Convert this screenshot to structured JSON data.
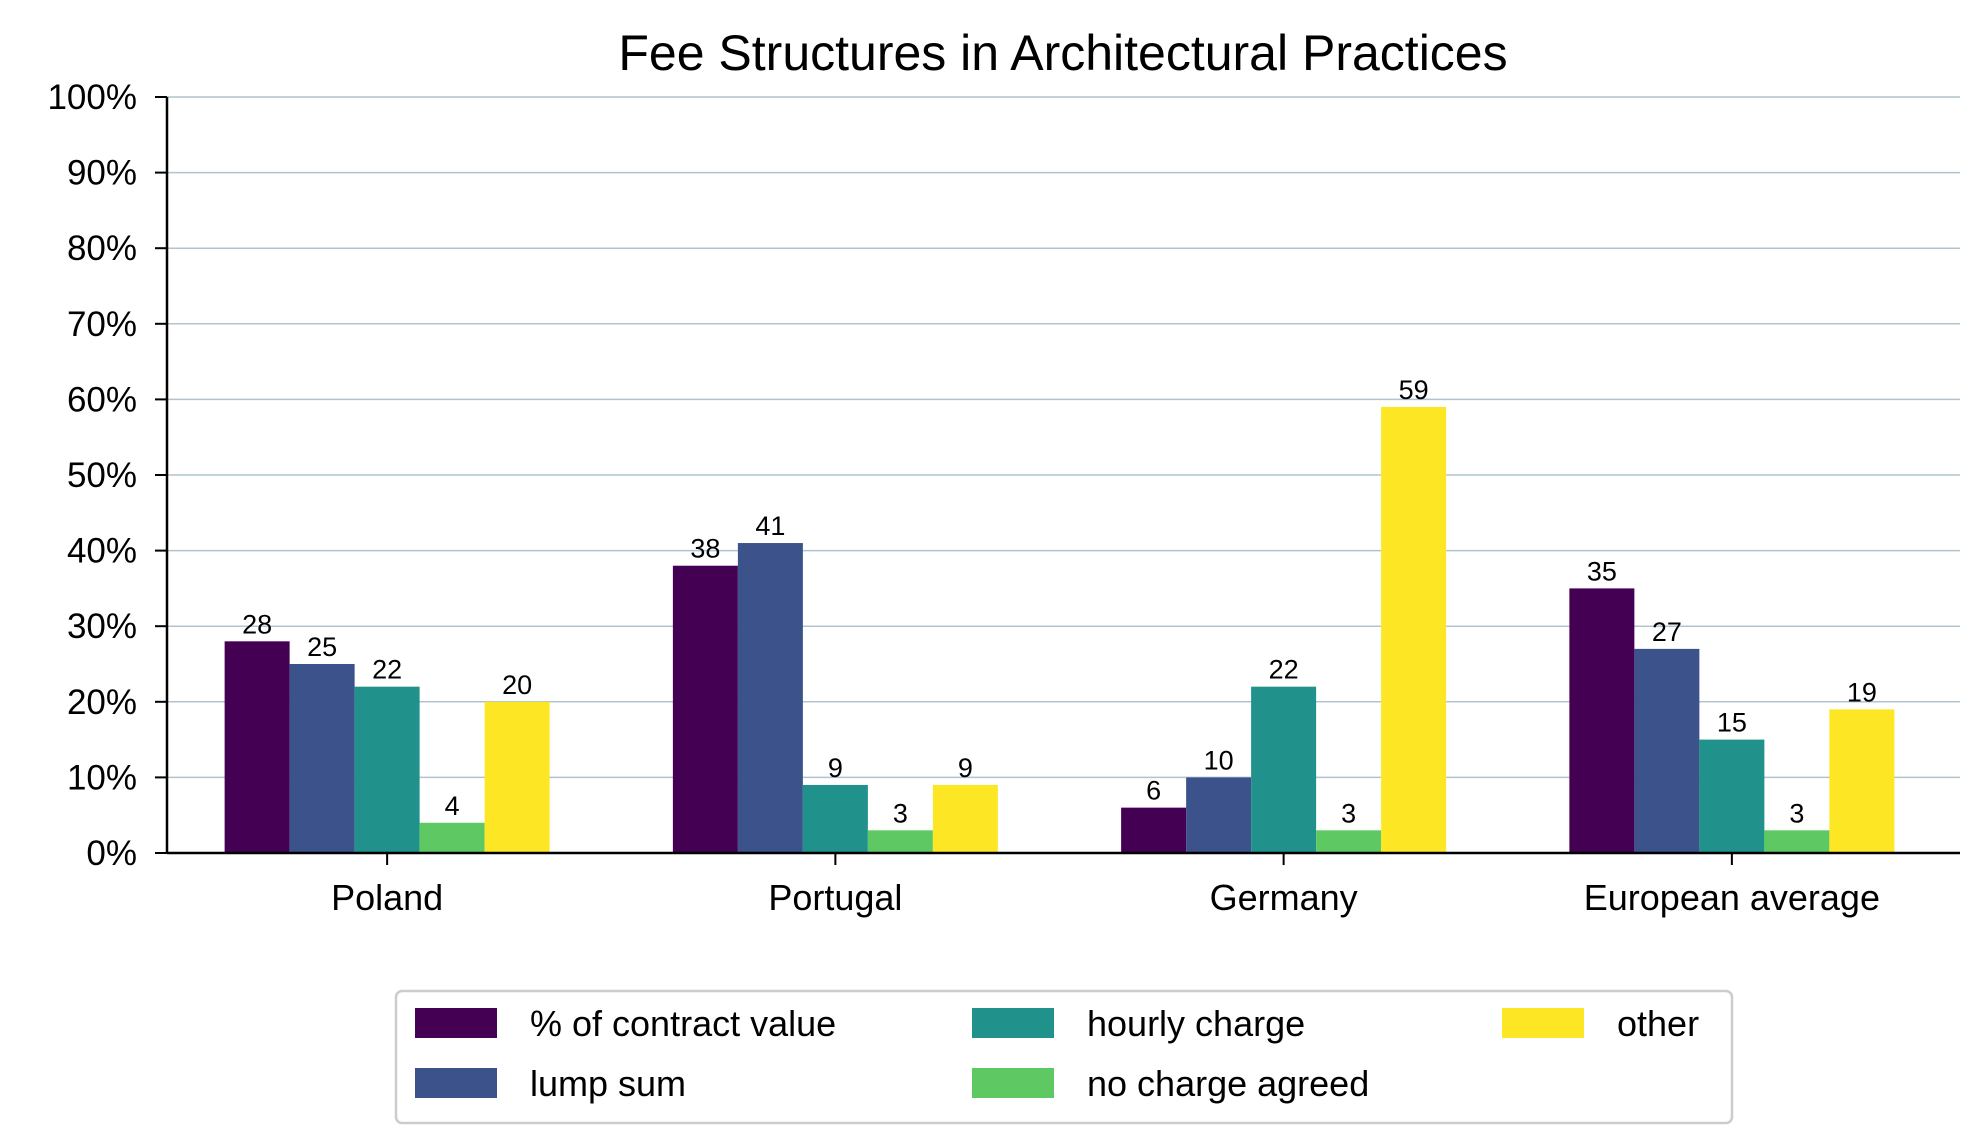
{
  "chart_data": {
    "type": "bar",
    "title": "Fee Structures in Architectural Practices",
    "xlabel": "",
    "ylabel": "",
    "ylim": [
      0,
      100
    ],
    "y_ticks": [
      "0%",
      "10%",
      "20%",
      "30%",
      "40%",
      "50%",
      "60%",
      "70%",
      "80%",
      "90%",
      "100%"
    ],
    "grid": true,
    "legend_position": "bottom-center",
    "categories": [
      "Poland",
      "Portugal",
      "Germany",
      "European average"
    ],
    "series": [
      {
        "name": "% of contract value",
        "color": "#440154",
        "values": [
          28,
          38,
          6,
          35
        ]
      },
      {
        "name": "lump sum",
        "color": "#3b528b",
        "values": [
          25,
          41,
          10,
          27
        ]
      },
      {
        "name": "hourly charge",
        "color": "#21918c",
        "values": [
          22,
          9,
          22,
          15
        ]
      },
      {
        "name": "no charge agreed",
        "color": "#5ec962",
        "values": [
          4,
          3,
          3,
          3
        ]
      },
      {
        "name": "other",
        "color": "#fde725",
        "values": [
          20,
          9,
          59,
          19
        ]
      }
    ]
  }
}
